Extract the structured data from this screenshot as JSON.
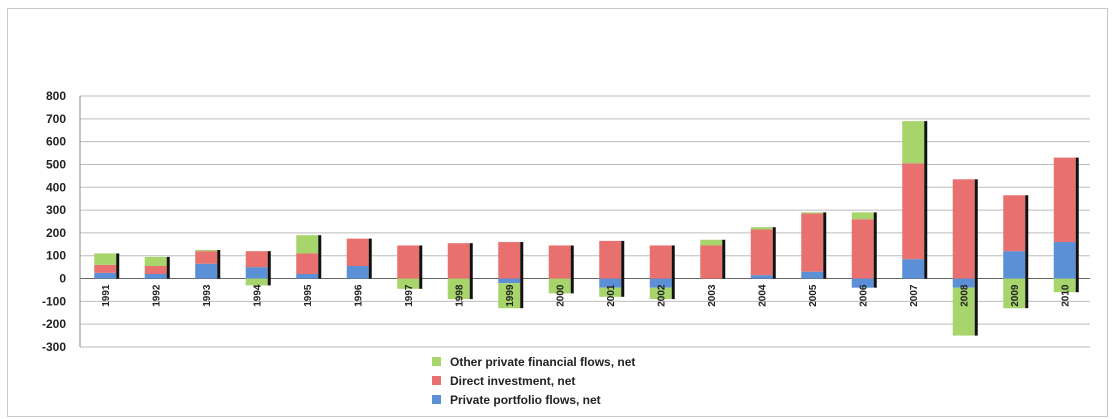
{
  "chart_data": {
    "type": "bar",
    "stacked": true,
    "title": "",
    "xlabel": "",
    "ylabel": "",
    "ylim": [
      -300,
      800
    ],
    "yticks": [
      800,
      700,
      600,
      500,
      400,
      300,
      200,
      100,
      0,
      -100,
      -200,
      -300
    ],
    "grid": true,
    "legend": "bottom-center",
    "categories": [
      "1991",
      "1992",
      "1993",
      "1994",
      "1995",
      "1996",
      "1997",
      "1998",
      "1999",
      "2000",
      "2001",
      "2002",
      "2003",
      "2004",
      "2005",
      "2006",
      "2007",
      "2008",
      "2009",
      "2010"
    ],
    "series": [
      {
        "name": "Private portfolio flows, net",
        "color": "#5b8fd6",
        "values": [
          25,
          20,
          65,
          50,
          20,
          55,
          0,
          0,
          -20,
          0,
          -40,
          -40,
          0,
          15,
          30,
          -40,
          85,
          -40,
          120,
          160
        ]
      },
      {
        "name": "Direct investment, net",
        "color": "#e8716f",
        "values": [
          35,
          35,
          55,
          70,
          90,
          120,
          145,
          155,
          160,
          145,
          165,
          145,
          145,
          200,
          255,
          260,
          420,
          435,
          245,
          370
        ]
      },
      {
        "name": "Other private financial flows, net",
        "color": "#a7d46b",
        "values": [
          50,
          40,
          5,
          -30,
          80,
          0,
          -45,
          -90,
          -110,
          -65,
          -40,
          -50,
          25,
          10,
          5,
          30,
          185,
          -210,
          -130,
          -60
        ]
      }
    ]
  }
}
